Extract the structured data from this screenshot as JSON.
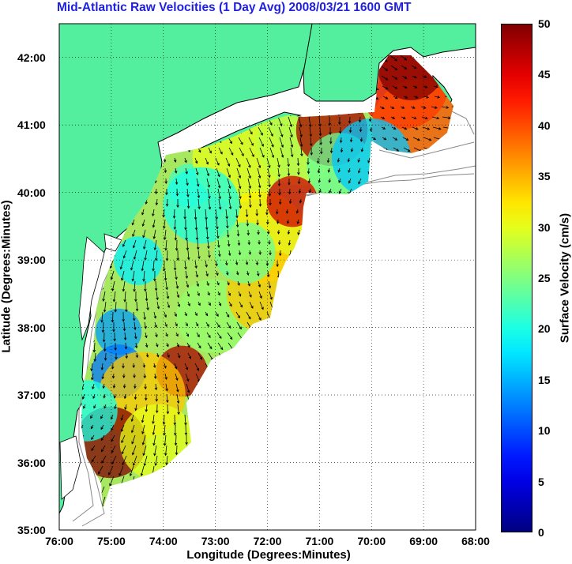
{
  "title": "Mid-Atlantic Raw Velocities (1 Day Avg) 2008/03/21 1600 GMT",
  "x_axis": {
    "label": "Longitude (Degrees:Minutes)",
    "ticks": [
      "76:00",
      "75:00",
      "74:00",
      "73:00",
      "72:00",
      "71:00",
      "70:00",
      "69:00",
      "68:00"
    ]
  },
  "y_axis": {
    "label": "Latitude (Degrees:Minutes)",
    "ticks": [
      "35:00",
      "36:00",
      "37:00",
      "38:00",
      "39:00",
      "40:00",
      "41:00",
      "42:00"
    ]
  },
  "colorbar": {
    "label": "Surface Velocity (cm/s)",
    "ticks": [
      "0",
      "5",
      "10",
      "15",
      "20",
      "25",
      "30",
      "35",
      "40",
      "45",
      "50"
    ]
  },
  "colors": {
    "land": "#54ef9e",
    "title": "#1f1fe0",
    "coast_line": "#000000",
    "bathymetry": "#8a8a8a",
    "grid": "#000000"
  },
  "chart_data": {
    "type": "heatmap",
    "title": "Mid-Atlantic Raw Velocities (1 Day Avg) 2008/03/21 1600 GMT",
    "xlabel": "Longitude (Degrees:Minutes)",
    "ylabel": "Latitude (Degrees:Minutes)",
    "xlim": [
      -76,
      -68
    ],
    "ylim": [
      35,
      42.5
    ],
    "color_scale": {
      "label": "Surface Velocity (cm/s)",
      "min": 0,
      "max": 50,
      "colormap": "jet"
    },
    "grid": true,
    "features": [
      "land",
      "coastline",
      "bathymetry contours",
      "velocity vectors"
    ]
  }
}
